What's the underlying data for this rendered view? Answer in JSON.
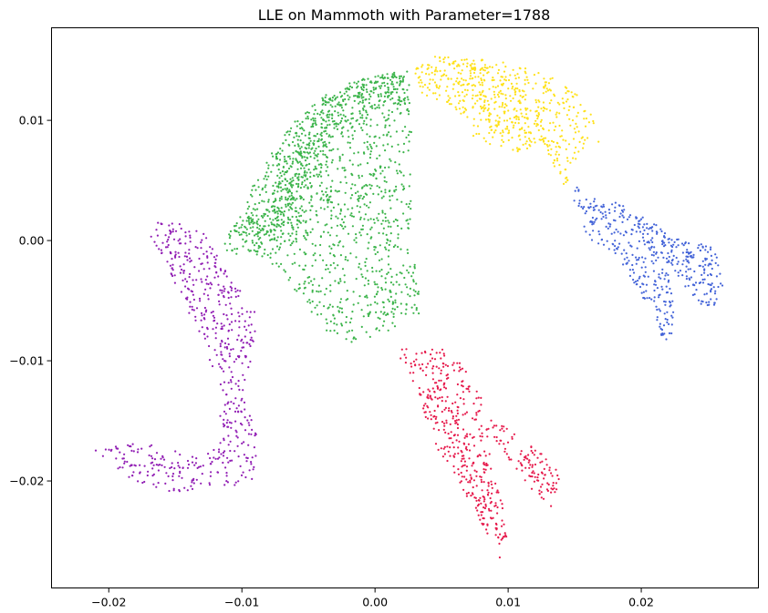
{
  "chart_data": {
    "type": "scatter",
    "title": "LLE on Mammoth with Parameter=1788",
    "xlabel": "",
    "ylabel": "",
    "xlim": [
      -0.0243,
      0.0288
    ],
    "ylim": [
      -0.0289,
      0.0177
    ],
    "x_ticks": [
      {
        "value": -0.02,
        "label": "−0.02"
      },
      {
        "value": -0.01,
        "label": "−0.01"
      },
      {
        "value": 0.0,
        "label": "0.00"
      },
      {
        "value": 0.01,
        "label": "0.01"
      },
      {
        "value": 0.02,
        "label": "0.02"
      }
    ],
    "y_ticks": [
      {
        "value": 0.01,
        "label": "0.01"
      },
      {
        "value": 0.0,
        "label": "0.00"
      },
      {
        "value": -0.01,
        "label": "−0.01"
      },
      {
        "value": -0.02,
        "label": "−0.02"
      }
    ],
    "grid": false,
    "legend": "none",
    "series": [
      {
        "color": "#3cb44b",
        "count": 1700,
        "outline": [
          [
            -0.0115,
            -0.0005
          ],
          [
            -0.0105,
            0.0015
          ],
          [
            -0.0092,
            0.0045
          ],
          [
            -0.0078,
            0.0072
          ],
          [
            -0.0062,
            0.0098
          ],
          [
            -0.0042,
            0.0118
          ],
          [
            -0.0018,
            0.0132
          ],
          [
            0.0004,
            0.0138
          ],
          [
            0.0026,
            0.0142
          ],
          [
            0.0026,
            0.012
          ],
          [
            0.0028,
            0.008
          ],
          [
            0.0027,
            0.003
          ],
          [
            0.003,
            -0.002
          ],
          [
            0.0035,
            -0.006
          ],
          [
            0.001,
            -0.0075
          ],
          [
            -0.0012,
            -0.0088
          ],
          [
            -0.0035,
            -0.0078
          ],
          [
            -0.0055,
            -0.005
          ],
          [
            -0.007,
            -0.0025
          ],
          [
            -0.0092,
            -0.001
          ],
          [
            -0.011,
            -0.0012
          ]
        ],
        "dense_band": [
          [
            -0.0105,
            -0.0002
          ],
          [
            -0.0085,
            0.0012
          ],
          [
            -0.007,
            0.0025
          ],
          [
            -0.006,
            0.0052
          ],
          [
            -0.0052,
            0.008
          ],
          [
            -0.004,
            0.01
          ],
          [
            -0.0018,
            0.012
          ],
          [
            0.0008,
            0.0132
          ],
          [
            0.0024,
            0.0138
          ]
        ]
      },
      {
        "color": "#ffe119",
        "count": 650,
        "outline": [
          [
            0.0028,
            0.0142
          ],
          [
            0.0045,
            0.0153
          ],
          [
            0.0065,
            0.0152
          ],
          [
            0.009,
            0.015
          ],
          [
            0.011,
            0.0145
          ],
          [
            0.013,
            0.0138
          ],
          [
            0.015,
            0.0125
          ],
          [
            0.0165,
            0.01
          ],
          [
            0.0172,
            0.0085
          ],
          [
            0.0148,
            0.0065
          ],
          [
            0.0145,
            0.004
          ],
          [
            0.0125,
            0.008
          ],
          [
            0.0095,
            0.007
          ],
          [
            0.0075,
            0.0085
          ],
          [
            0.0055,
            0.0115
          ],
          [
            0.0035,
            0.0115
          ]
        ],
        "dense_band": [
          [
            0.004,
            0.0145
          ],
          [
            0.0065,
            0.0145
          ],
          [
            0.009,
            0.011
          ],
          [
            0.011,
            0.01
          ],
          [
            0.0145,
            0.006
          ]
        ]
      },
      {
        "color": "#4363d8",
        "count": 520,
        "outline": [
          [
            0.015,
            0.0045
          ],
          [
            0.0185,
            0.003
          ],
          [
            0.0225,
            0.0005
          ],
          [
            0.0255,
            -0.0005
          ],
          [
            0.0265,
            -0.0055
          ],
          [
            0.0245,
            -0.0055
          ],
          [
            0.022,
            -0.002
          ],
          [
            0.0225,
            -0.006
          ],
          [
            0.0222,
            -0.01
          ],
          [
            0.0205,
            -0.0055
          ],
          [
            0.018,
            -0.001
          ],
          [
            0.016,
            0.0
          ],
          [
            0.0148,
            0.003
          ]
        ],
        "dense_band": [
          [
            0.0165,
            0.0025
          ],
          [
            0.0195,
            0.001
          ],
          [
            0.024,
            -0.001
          ],
          [
            0.0255,
            -0.004
          ],
          [
            0.0215,
            -0.0045
          ],
          [
            0.0222,
            -0.0085
          ]
        ]
      },
      {
        "color": "#e6194b",
        "count": 600,
        "outline": [
          [
            0.0015,
            -0.009
          ],
          [
            0.004,
            -0.009
          ],
          [
            0.006,
            -0.009
          ],
          [
            0.009,
            -0.015
          ],
          [
            0.012,
            -0.017
          ],
          [
            0.014,
            -0.0195
          ],
          [
            0.0132,
            -0.0225
          ],
          [
            0.0105,
            -0.019
          ],
          [
            0.0085,
            -0.017
          ],
          [
            0.01,
            -0.024
          ],
          [
            0.0095,
            -0.0268
          ],
          [
            0.008,
            -0.0235
          ],
          [
            0.006,
            -0.0195
          ],
          [
            0.0045,
            -0.017
          ],
          [
            0.003,
            -0.012
          ]
        ],
        "dense_band": [
          [
            0.003,
            -0.01
          ],
          [
            0.005,
            -0.013
          ],
          [
            0.0065,
            -0.018
          ],
          [
            0.0085,
            -0.0215
          ],
          [
            0.0098,
            -0.025
          ],
          [
            0.012,
            -0.018
          ],
          [
            0.0135,
            -0.0205
          ]
        ]
      },
      {
        "color": "#911eb4",
        "count": 620,
        "outline": [
          [
            -0.0175,
            0.0015
          ],
          [
            -0.015,
            0.0018
          ],
          [
            -0.013,
            0.001
          ],
          [
            -0.0115,
            -0.002
          ],
          [
            -0.009,
            -0.006
          ],
          [
            -0.009,
            -0.0085
          ],
          [
            -0.0098,
            -0.012
          ],
          [
            -0.0088,
            -0.0165
          ],
          [
            -0.009,
            -0.02
          ],
          [
            -0.011,
            -0.0205
          ],
          [
            -0.015,
            -0.021
          ],
          [
            -0.0185,
            -0.02
          ],
          [
            -0.0215,
            -0.017
          ],
          [
            -0.0175,
            -0.0168
          ],
          [
            -0.013,
            -0.018
          ],
          [
            -0.0115,
            -0.0165
          ],
          [
            -0.0118,
            -0.012
          ],
          [
            -0.013,
            -0.008
          ],
          [
            -0.015,
            -0.004
          ],
          [
            -0.0162,
            -0.001
          ]
        ],
        "dense_band": [
          [
            -0.016,
            0.0005
          ],
          [
            -0.015,
            -0.0025
          ],
          [
            -0.012,
            -0.002
          ],
          [
            -0.0105,
            -0.006
          ],
          [
            -0.011,
            -0.01
          ],
          [
            -0.01,
            -0.015
          ],
          [
            -0.011,
            -0.019
          ],
          [
            -0.015,
            -0.0195
          ],
          [
            -0.02,
            -0.018
          ]
        ]
      }
    ]
  }
}
